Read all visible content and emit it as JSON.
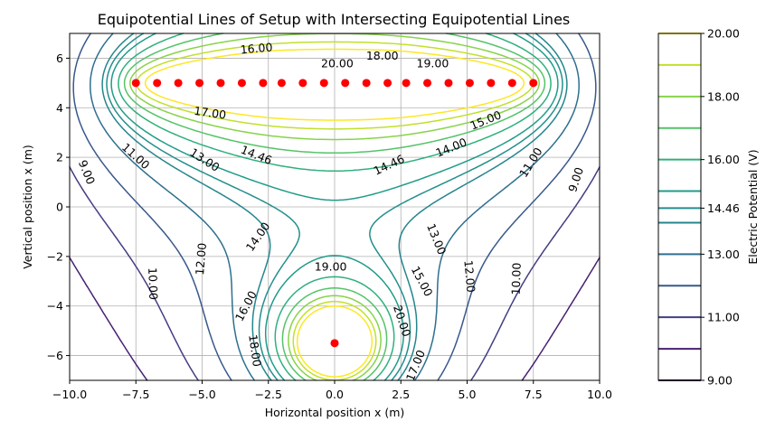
{
  "chart_data": {
    "type": "contour",
    "title": "Equipotential Lines of Setup with Intersecting Equipotential Lines",
    "xlabel": "Horizontal position x (m)",
    "ylabel": "Vertical position x (m)",
    "colorbar_label": "Electric Potential (V)",
    "xlim": [
      -10,
      10
    ],
    "ylim": [
      -7,
      7
    ],
    "xticks": [
      -10.0,
      -7.5,
      -5.0,
      -2.5,
      0.0,
      2.5,
      5.0,
      7.5,
      10.0
    ],
    "xtick_labels": [
      "−10.0",
      "−7.5",
      "−5.0",
      "−2.5",
      "0.0",
      "2.5",
      "5.0",
      "7.5",
      "10.0"
    ],
    "yticks": [
      6,
      4,
      2,
      0,
      -2,
      -4,
      -6
    ],
    "ytick_labels": [
      "6",
      "4",
      "2",
      "0",
      "−2",
      "−4",
      "−6"
    ],
    "grid": true,
    "colormap": "viridis",
    "levels": [
      9.0,
      10.0,
      11.0,
      12.0,
      13.0,
      14.0,
      14.46,
      15.0,
      16.0,
      17.0,
      18.0,
      19.0,
      20.0
    ],
    "colorbar_ticks": [
      20.0,
      18.0,
      16.0,
      14.46,
      13.0,
      11.0,
      9.0
    ],
    "colorbar_tick_labels": [
      "20.00",
      "18.00",
      "16.00",
      "14.46",
      "13.00",
      "11.00",
      "9.00"
    ],
    "charges": {
      "color": "#ff0000",
      "line": {
        "y": 5,
        "x": [
          -7.5,
          -6.7,
          -5.9,
          -5.1,
          -4.3,
          -3.5,
          -2.7,
          -2.0,
          -1.2,
          -0.4,
          0.4,
          1.2,
          2.0,
          2.7,
          3.5,
          4.3,
          5.1,
          5.9,
          6.7,
          7.5
        ]
      },
      "point": {
        "x": 0,
        "y": -5.5
      }
    },
    "contour_labels": [
      {
        "text": "16.00",
        "x": -2.95,
        "y": 6.4,
        "rot": -5
      },
      {
        "text": "18.00",
        "x": 1.8,
        "y": 6.1,
        "rot": 0
      },
      {
        "text": "20.00",
        "x": 0.1,
        "y": 5.8,
        "rot": 0
      },
      {
        "text": "19.00",
        "x": 3.7,
        "y": 5.8,
        "rot": 0
      },
      {
        "text": "17.00",
        "x": -4.7,
        "y": 3.8,
        "rot": 8
      },
      {
        "text": "15.00",
        "x": 5.7,
        "y": 3.5,
        "rot": -22
      },
      {
        "text": "14.00",
        "x": 4.4,
        "y": 2.4,
        "rot": -22
      },
      {
        "text": "11.00",
        "x": -7.5,
        "y": 2.05,
        "rot": 42
      },
      {
        "text": "13.00",
        "x": -4.9,
        "y": 1.9,
        "rot": 33
      },
      {
        "text": "14.46",
        "x": -2.95,
        "y": 2.1,
        "rot": 22
      },
      {
        "text": "14.46",
        "x": 2.05,
        "y": 1.7,
        "rot": -25
      },
      {
        "text": "11.00",
        "x": 7.4,
        "y": 1.8,
        "rot": -58
      },
      {
        "text": "9.00",
        "x": -9.35,
        "y": 1.4,
        "rot": 68
      },
      {
        "text": "9.00",
        "x": 9.1,
        "y": 1.1,
        "rot": -72
      },
      {
        "text": "14.00",
        "x": -2.9,
        "y": -1.2,
        "rot": -55
      },
      {
        "text": "13.00",
        "x": 3.85,
        "y": -1.3,
        "rot": 68
      },
      {
        "text": "12.00",
        "x": -5.05,
        "y": -2.1,
        "rot": -85
      },
      {
        "text": "19.00",
        "x": -0.15,
        "y": -2.4,
        "rot": 0
      },
      {
        "text": "12.00",
        "x": 5.1,
        "y": -2.8,
        "rot": 85
      },
      {
        "text": "10.00",
        "x": -6.85,
        "y": -3.1,
        "rot": 88
      },
      {
        "text": "15.00",
        "x": 3.3,
        "y": -3.0,
        "rot": 62
      },
      {
        "text": "10.00",
        "x": 6.85,
        "y": -2.9,
        "rot": -88
      },
      {
        "text": "16.00",
        "x": -3.35,
        "y": -4.0,
        "rot": -62
      },
      {
        "text": "20.00",
        "x": 2.55,
        "y": -4.6,
        "rot": 72
      },
      {
        "text": "18.00",
        "x": -3.0,
        "y": -5.8,
        "rot": 82
      },
      {
        "text": "17.00",
        "x": 3.05,
        "y": -6.4,
        "rot": -68
      }
    ]
  }
}
